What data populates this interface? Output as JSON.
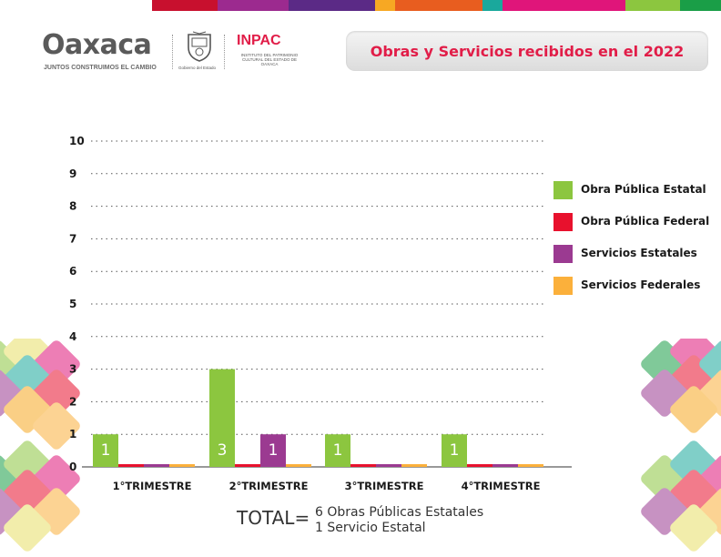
{
  "header": {
    "logo_text": "Oaxaca",
    "logo_tagline": "JUNTOS CONSTRUIMOS EL CAMBIO",
    "gov_label": "Gobierno del Estado",
    "inpac_title": "INPAC",
    "inpac_subtitle": "INSTITUTO DEL PATRIMONIO CULTURAL DEL ESTADO DE OAXACA",
    "page_title": "Obras y Servicios recibidos en el 2022"
  },
  "colors": {
    "obra_estatal": "#8cc63f",
    "obra_federal": "#e8112d",
    "servicios_estatales": "#9b3a91",
    "servicios_federales": "#fbb03b",
    "title_red": "#e11d48",
    "stripe": [
      "#c8102e",
      "#9c2a8f",
      "#5b2a86",
      "#f7a823",
      "#e85d1f",
      "#1aa89c",
      "#e0157a",
      "#8cc63f",
      "#1a9e47"
    ]
  },
  "chart_data": {
    "type": "bar",
    "categories": [
      "1°TRIMESTRE",
      "2°TRIMESTRE",
      "3°TRIMESTRE",
      "4°TRIMESTRE"
    ],
    "series": [
      {
        "name": "Obra Pública Estatal",
        "values": [
          1,
          3,
          1,
          1
        ]
      },
      {
        "name": "Obra Pública Federal",
        "values": [
          0,
          0,
          0,
          0
        ]
      },
      {
        "name": "Servicios Estatales",
        "values": [
          0,
          1,
          0,
          0
        ]
      },
      {
        "name": "Servicios Federales",
        "values": [
          0,
          0,
          0,
          0
        ]
      }
    ],
    "y_ticks": [
      "0",
      "1",
      "2",
      "3",
      "4",
      "5",
      "6",
      "7",
      "8",
      "9",
      "10"
    ],
    "ylim": [
      0,
      10
    ],
    "grid": true,
    "legend_position": "right"
  },
  "total": {
    "label": "TOTAL=",
    "lines": [
      "6  Obras Públicas Estatales",
      "1  Servicio Estatal"
    ]
  }
}
